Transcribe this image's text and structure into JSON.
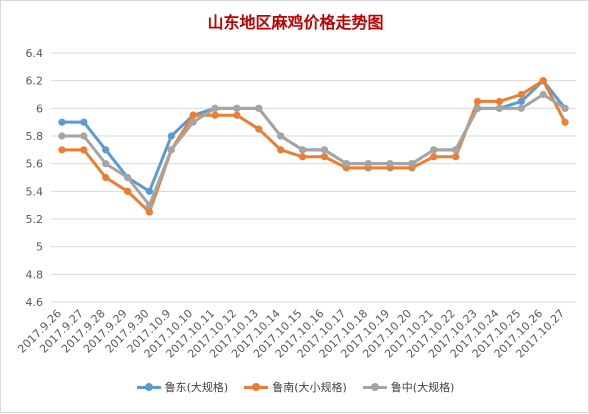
{
  "chart_data": {
    "type": "line",
    "title": "山东地区麻鸡价格走势图",
    "xlabel": "",
    "ylabel": "",
    "ylim": [
      4.6,
      6.4
    ],
    "yticks": [
      "4.6",
      "4.8",
      "5",
      "5.2",
      "5.4",
      "5.6",
      "5.8",
      "6",
      "6.2",
      "6.4"
    ],
    "grid": true,
    "legend_position": "bottom",
    "categories": [
      "2017.9.26",
      "2017.9.27",
      "2017.9.28",
      "2017.9.29",
      "2017.9.30",
      "2017.10.9",
      "2017.10.10",
      "2017.10.11",
      "2017.10.12",
      "2017.10.13",
      "2017.10.14",
      "2017.10.15",
      "2017.10.16",
      "2017.10.17",
      "2017.10.18",
      "2017.10.19",
      "2017.10.20",
      "2017.10.21",
      "2017.10.22",
      "2017.10.23",
      "2017.10.24",
      "2017.10.25",
      "2017.10.26",
      "2017.10.27"
    ],
    "series": [
      {
        "name": "鲁东(大规格)",
        "color": "#5b9bd5",
        "values": [
          5.9,
          5.9,
          5.7,
          5.5,
          5.4,
          5.8,
          5.95,
          6.0,
          6.0,
          6.0,
          5.8,
          5.7,
          5.7,
          5.6,
          5.6,
          5.6,
          5.6,
          5.7,
          5.7,
          6.0,
          6.0,
          6.05,
          6.2,
          6.0
        ]
      },
      {
        "name": "鲁南(大小规格)",
        "color": "#ed7d31",
        "values": [
          5.7,
          5.7,
          5.5,
          5.4,
          5.25,
          5.7,
          5.95,
          5.95,
          5.95,
          5.85,
          5.7,
          5.65,
          5.65,
          5.57,
          5.57,
          5.57,
          5.57,
          5.65,
          5.65,
          6.05,
          6.05,
          6.1,
          6.2,
          5.9
        ]
      },
      {
        "name": "鲁中(大规格)",
        "color": "#a5a5a5",
        "values": [
          5.8,
          5.8,
          5.6,
          5.5,
          5.3,
          5.7,
          5.9,
          6.0,
          6.0,
          6.0,
          5.8,
          5.7,
          5.7,
          5.6,
          5.6,
          5.6,
          5.6,
          5.7,
          5.7,
          6.0,
          6.0,
          6.0,
          6.1,
          6.0
        ]
      }
    ]
  }
}
